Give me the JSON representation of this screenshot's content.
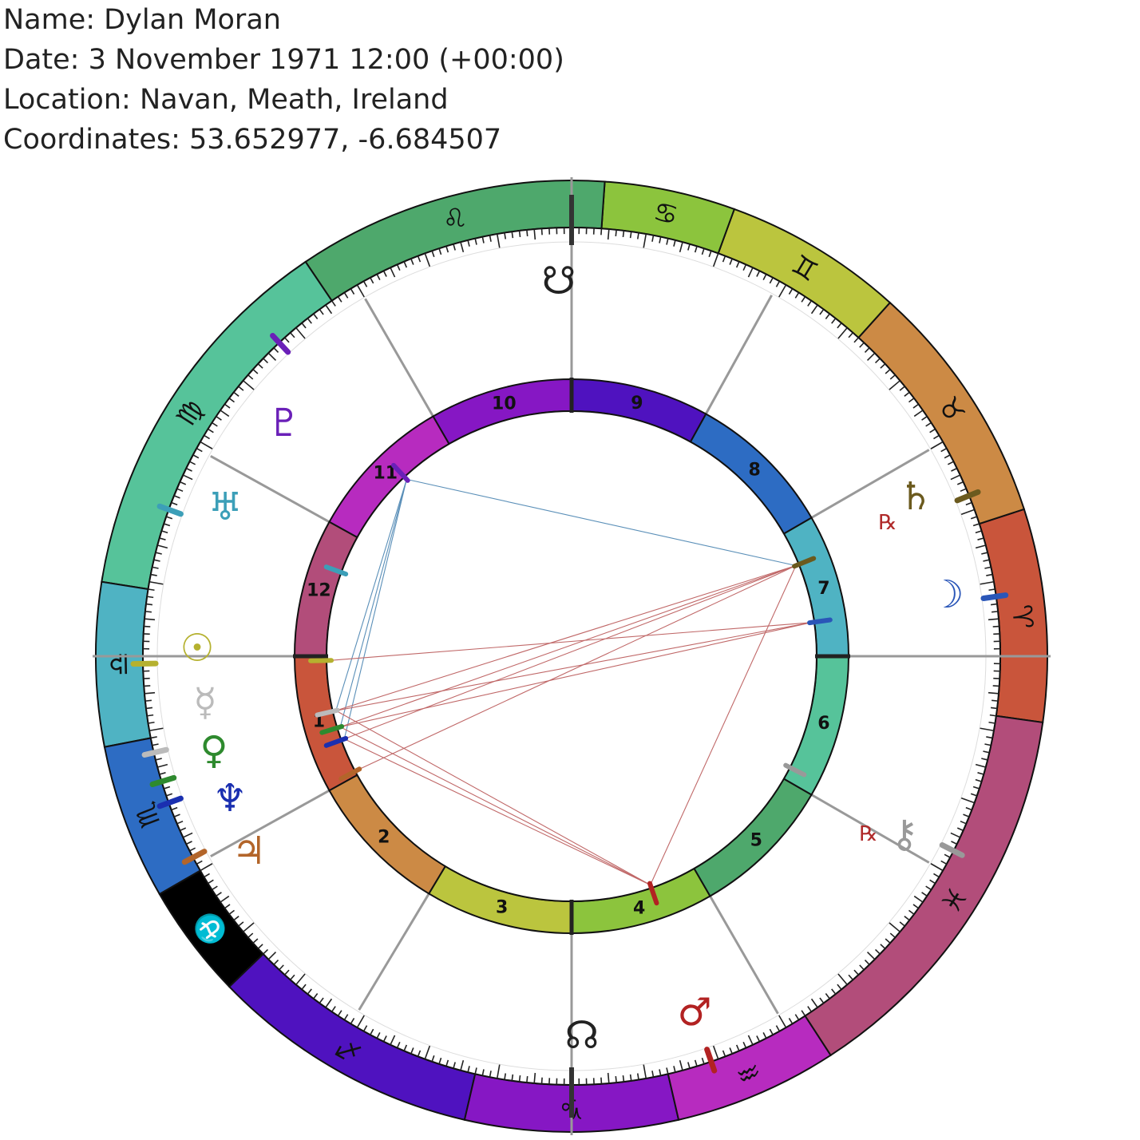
{
  "header": {
    "name": "Name: Dylan Moran",
    "date": "Date: 3 November 1971 12:00 (+00:00)",
    "location": "Location: Navan, Meath, Ireland",
    "coordinates": "Coordinates: 53.652977, -6.684507"
  },
  "signs": [
    {
      "name": "aries",
      "glyph": "♈",
      "color": "#c9553b"
    },
    {
      "name": "taurus",
      "glyph": "♉",
      "color": "#cc8a45"
    },
    {
      "name": "gemini",
      "glyph": "♊",
      "color": "#bbc53e"
    },
    {
      "name": "cancer",
      "glyph": "♋",
      "color": "#8cc43d"
    },
    {
      "name": "leo",
      "glyph": "♌",
      "color": "#4ea86c"
    },
    {
      "name": "virgo",
      "glyph": "♍",
      "color": "#56c39a"
    },
    {
      "name": "libra",
      "glyph": "♎",
      "color": "#4fb3c3"
    },
    {
      "name": "scorpio",
      "glyph": "♏",
      "color": "#2d6cc3"
    },
    {
      "name": "ophiuchus",
      "glyph": "⛎",
      "color": "#000000"
    },
    {
      "name": "sagittarius",
      "glyph": "♐",
      "color": "#4f12bf"
    },
    {
      "name": "capricorn",
      "glyph": "♑",
      "color": "#8617c4"
    },
    {
      "name": "aquarius",
      "glyph": "♒",
      "color": "#b72bbf"
    },
    {
      "name": "pisces",
      "glyph": "♓",
      "color": "#b24d7a"
    }
  ],
  "houses": [
    {
      "label": "1",
      "color": "#c9553b"
    },
    {
      "label": "2",
      "color": "#cc8a45"
    },
    {
      "label": "3",
      "color": "#bbc53e"
    },
    {
      "label": "4",
      "color": "#8cc43d"
    },
    {
      "label": "5",
      "color": "#4ea86c"
    },
    {
      "label": "6",
      "color": "#56c39a"
    },
    {
      "label": "7",
      "color": "#4fb3c3"
    },
    {
      "label": "8",
      "color": "#2d6cc3"
    },
    {
      "label": "9",
      "color": "#4f12bf"
    },
    {
      "label": "10",
      "color": "#8617c4"
    },
    {
      "label": "11",
      "color": "#b72bbf"
    },
    {
      "label": "12",
      "color": "#b24d7a"
    }
  ],
  "bodies": [
    {
      "name": "sun",
      "glyph": "☉",
      "color": "#b5b12f"
    },
    {
      "name": "moon",
      "glyph": "☽",
      "color": "#2a56b8"
    },
    {
      "name": "mercury",
      "glyph": "☿",
      "color": "#bbbbbb"
    },
    {
      "name": "venus",
      "glyph": "♀",
      "color": "#2e8a2e"
    },
    {
      "name": "mars",
      "glyph": "♂",
      "color": "#b22222"
    },
    {
      "name": "jupiter",
      "glyph": "♃",
      "color": "#b3652a"
    },
    {
      "name": "saturn",
      "glyph": "♄",
      "color": "#6b5a1e",
      "retro": "℞"
    },
    {
      "name": "uranus",
      "glyph": "♅",
      "color": "#3c9fb8"
    },
    {
      "name": "neptune",
      "glyph": "♆",
      "color": "#1a2fb0"
    },
    {
      "name": "pluto",
      "glyph": "♇",
      "color": "#6a20b8"
    },
    {
      "name": "chiron",
      "glyph": "⚷",
      "color": "#999999",
      "retro": "℞"
    },
    {
      "name": "north-node",
      "glyph": "☊",
      "color": "#222222"
    },
    {
      "name": "south-node",
      "glyph": "☋",
      "color": "#222222"
    }
  ],
  "retro_color": "#b02a2a"
}
